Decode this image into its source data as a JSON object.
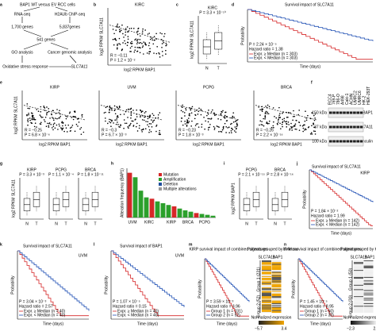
{
  "panels": {
    "a": {
      "label": "a",
      "texts": [
        "BAP1 WT versus EV RCC cells",
        "RNA-seq",
        "H2AUb ChIP-seq",
        "1,700 genes",
        "5,837genes",
        "541 genes",
        "GO analysis",
        "Cancer genomic analysis",
        "Oxidative stress response",
        "SLC7A11"
      ]
    },
    "b": {
      "label": "b",
      "title": "KIRC",
      "ylabel": "log2 RPKM SLC7A11",
      "xlabel": "log2 RPKM BAP1",
      "r": "R = −0.11",
      "p": "P = 1.2 × 10⁻²"
    },
    "c": {
      "label": "c",
      "title": "KIRC",
      "p": "P = 3.3 × 10⁻¹⁰",
      "ylabel": "log2 RPKM SLC7A11",
      "categories": [
        "N",
        "T"
      ]
    },
    "d": {
      "label": "d",
      "title": "Survival impact of SLC7A11",
      "p": "P = 2.24 × 10⁻⁵",
      "hr": "Hazard ratio = 1.38",
      "legend": [
        "Expr. ≥ Median (n = 303)",
        "Expr. < Median (n = 303)"
      ],
      "ylabel": "Probability",
      "xlabel": "Time (days)"
    },
    "e": {
      "label": "e",
      "ylabel": "log2 RPKM SLC7A11",
      "xlabel": "log2 RPKM BAP1",
      "plots": [
        {
          "title": "KIRP",
          "r": "R = −0.25",
          "p": "P = 6.8 × 10⁻⁶"
        },
        {
          "title": "UVM",
          "r": "R = −0.3",
          "p": "P = 6.7 × 10⁻³"
        },
        {
          "title": "PCPG",
          "r": "R = −0.23",
          "p": "P = 1.8 × 10⁻³"
        },
        {
          "title": "BRCA",
          "r": "R = −0.26",
          "p": "P = 2.2 × 10⁻¹⁶"
        }
      ]
    },
    "f": {
      "label": "f",
      "lanes": [
        "RCC4",
        "769-P",
        "786-O",
        "A498",
        "Caki-1",
        "ACHN",
        "UMRC2",
        "UMRC6",
        "HK-2",
        "HEK-293T"
      ],
      "markers": [
        "150 kDa",
        "37 kDa",
        "100 kDa"
      ],
      "bands": [
        "BAP1",
        "SLC7A11",
        "Vinculin"
      ]
    },
    "g": {
      "label": "g",
      "ylabel": "log2 RPKM SLC7A11",
      "categories": [
        "N",
        "T"
      ],
      "plots": [
        {
          "title": "KIRP",
          "p": "P = 3.3 × 10⁻³"
        },
        {
          "title": "PCPG",
          "p": "P = 1.1 × 10⁻⁴"
        },
        {
          "title": "BRCA",
          "p": "P = 1.8 × 10⁻¹¹"
        }
      ]
    },
    "h": {
      "label": "h",
      "ylabel": "Alteration frequency (BAP1)",
      "legend": [
        {
          "name": "Mutation",
          "color": "#d62728"
        },
        {
          "name": "Amplification",
          "color": "#2ca02c"
        },
        {
          "name": "Deletion",
          "color": "#1f4e9c"
        },
        {
          "name": "Multiple alterations",
          "color": "#999999"
        }
      ],
      "groups": [
        "UVM",
        "KIRC",
        "KIRP",
        "BRCA",
        "PCPG"
      ],
      "values": [
        10,
        9,
        6,
        4.5,
        4.2,
        3.6,
        3.2,
        2.8,
        2.5,
        2,
        1.6,
        1.3,
        1,
        0.8,
        0.6,
        0.4
      ],
      "ylim": [
        0,
        11
      ]
    },
    "i": {
      "label": "i",
      "ylabel": "log2 RPKM BAP1",
      "categories": [
        "N",
        "T"
      ],
      "plots": [
        {
          "title": "PCPG",
          "p": "P = 2.1 × 10⁻¹⁵"
        },
        {
          "title": "BRCA",
          "p": "P = 2.8 × 10⁻¹⁶"
        }
      ]
    },
    "j": {
      "label": "j",
      "title": "Survival impact of SLC7A11",
      "sub": "KIRP",
      "p": "P = 1.84 × 10⁻²",
      "hr": "Hazard ratio = 1.99",
      "legend": [
        "Expr. ≥ Median (n = 142)",
        "Expr. < Median (n = 142)"
      ],
      "ylabel": "Probability",
      "xlabel": "Time (days)"
    },
    "k": {
      "label": "k",
      "title": "Survival impact of SLC7A11",
      "sub": "UVM",
      "p": "P = 3.04 × 10⁻³",
      "hr": "Hazard ratio = 2.57",
      "legend": [
        "Expr. ≥ Median (n = 40)",
        "Expr. < Median (n = 40)"
      ],
      "ylabel": "Probability",
      "xlabel": "Time (days)"
    },
    "l": {
      "label": "l",
      "title": "Survival impact of BAP1",
      "sub": "UVM",
      "p": "P = 1.07 × 10⁻⁵",
      "hr": "Hazard ratio = 0.15",
      "legend": [
        "Expr. ≥ Median (n = 40)",
        "Expr. < Median (n = 40)"
      ],
      "ylabel": "Probability",
      "xlabel": "Time (days)"
    },
    "m": {
      "label": "m",
      "title": "KIRP survival impact of combined signatures",
      "p": "P = 3.59 × 10⁻³",
      "hr": "Hazard ratio = 3.96",
      "legend": [
        "Group 1 (n = 231)",
        "Group 2 (n = 52)"
      ],
      "ylabel": "Probability",
      "xlabel": "Time (days)",
      "heat_title": "Patients grouped by Kmeans",
      "columns": [
        "SLC7A11",
        "BAP1"
      ],
      "groups": [
        "Group 1 (231)",
        "Group 2 (52)"
      ],
      "scale": "Normalized expression",
      "scale_ticks": [
        "−5.7",
        "3.4"
      ]
    },
    "n": {
      "label": "n",
      "title": "UVM survival impact of combined signatures",
      "p": "P = 1.45 × 10⁻⁵",
      "hr": "Hazard ratio = 8.95",
      "legend": [
        "Group 1 (n = 50)",
        "Group 2 (n = 30)"
      ],
      "ylabel": "Probability",
      "xlabel": "Time (days)",
      "heat_title": "Patient grouped by Kmeans",
      "columns": [
        "SLC7A11",
        "BAP1"
      ],
      "groups": [
        "Group 1 (50)",
        "Group 2 (30)"
      ],
      "scale": "Normalized expression",
      "scale_ticks": [
        "−2.3",
        "2.6"
      ]
    }
  }
}
